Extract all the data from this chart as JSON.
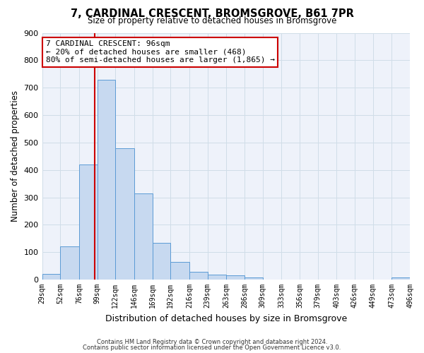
{
  "title": "7, CARDINAL CRESCENT, BROMSGROVE, B61 7PR",
  "subtitle": "Size of property relative to detached houses in Bromsgrove",
  "xlabel": "Distribution of detached houses by size in Bromsgrove",
  "ylabel": "Number of detached properties",
  "bar_edges": [
    29,
    52,
    76,
    99,
    122,
    146,
    169,
    192,
    216,
    239,
    263,
    286,
    309,
    333,
    356,
    379,
    403,
    426,
    449,
    473,
    496
  ],
  "bar_heights": [
    20,
    122,
    420,
    730,
    480,
    315,
    133,
    65,
    28,
    18,
    15,
    8,
    0,
    0,
    0,
    0,
    0,
    0,
    0,
    8
  ],
  "bar_color": "#c7d9f0",
  "bar_edge_color": "#5b9bd5",
  "vline_x": 96,
  "vline_color": "#cc0000",
  "ylim": [
    0,
    900
  ],
  "yticks": [
    0,
    100,
    200,
    300,
    400,
    500,
    600,
    700,
    800,
    900
  ],
  "xtick_labels": [
    "29sqm",
    "52sqm",
    "76sqm",
    "99sqm",
    "122sqm",
    "146sqm",
    "169sqm",
    "192sqm",
    "216sqm",
    "239sqm",
    "263sqm",
    "286sqm",
    "309sqm",
    "333sqm",
    "356sqm",
    "379sqm",
    "403sqm",
    "426sqm",
    "449sqm",
    "473sqm",
    "496sqm"
  ],
  "annotation_title": "7 CARDINAL CRESCENT: 96sqm",
  "annotation_line1": "← 20% of detached houses are smaller (468)",
  "annotation_line2": "80% of semi-detached houses are larger (1,865) →",
  "annotation_box_color": "#ffffff",
  "annotation_box_edge_color": "#cc0000",
  "footer1": "Contains HM Land Registry data © Crown copyright and database right 2024.",
  "footer2": "Contains public sector information licensed under the Open Government Licence v3.0.",
  "grid_color": "#d0dde8",
  "background_color": "#eef2fa"
}
